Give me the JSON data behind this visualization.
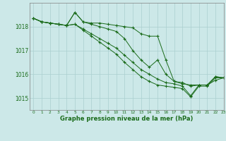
{
  "bg_color": "#cce8e8",
  "grid_color": "#aacfcf",
  "line_color": "#1a6b1a",
  "title": "Graphe pression niveau de la mer (hPa)",
  "xlim": [
    -0.5,
    23
  ],
  "ylim": [
    1014.5,
    1019.0
  ],
  "yticks": [
    1015,
    1016,
    1017,
    1018
  ],
  "xticks": [
    0,
    1,
    2,
    3,
    4,
    5,
    6,
    7,
    8,
    9,
    10,
    11,
    12,
    13,
    14,
    15,
    16,
    17,
    18,
    19,
    20,
    21,
    22,
    23
  ],
  "series": [
    [
      1018.35,
      1018.2,
      1018.15,
      1018.1,
      1018.05,
      1018.6,
      1018.2,
      1018.15,
      1018.15,
      1018.1,
      1018.05,
      1018.0,
      1017.95,
      1017.7,
      1017.6,
      1017.6,
      1016.6,
      1015.7,
      1015.6,
      1015.55,
      1015.55,
      1015.55,
      1015.9,
      1015.85
    ],
    [
      1018.35,
      1018.2,
      1018.15,
      1018.1,
      1018.05,
      1018.6,
      1018.2,
      1018.1,
      1018.0,
      1017.9,
      1017.8,
      1017.5,
      1017.0,
      1016.6,
      1016.3,
      1016.6,
      1016.0,
      1015.7,
      1015.65,
      1015.5,
      1015.55,
      1015.55,
      1015.9,
      1015.85
    ],
    [
      1018.35,
      1018.2,
      1018.15,
      1018.1,
      1018.05,
      1018.1,
      1017.9,
      1017.7,
      1017.5,
      1017.3,
      1017.1,
      1016.8,
      1016.5,
      1016.2,
      1016.0,
      1015.8,
      1015.65,
      1015.6,
      1015.5,
      1015.1,
      1015.55,
      1015.55,
      1015.75,
      1015.85
    ],
    [
      1018.35,
      1018.2,
      1018.15,
      1018.1,
      1018.05,
      1018.1,
      1017.85,
      1017.6,
      1017.35,
      1017.1,
      1016.85,
      1016.5,
      1016.2,
      1015.9,
      1015.7,
      1015.55,
      1015.5,
      1015.45,
      1015.4,
      1015.05,
      1015.5,
      1015.5,
      1015.85,
      1015.85
    ]
  ]
}
